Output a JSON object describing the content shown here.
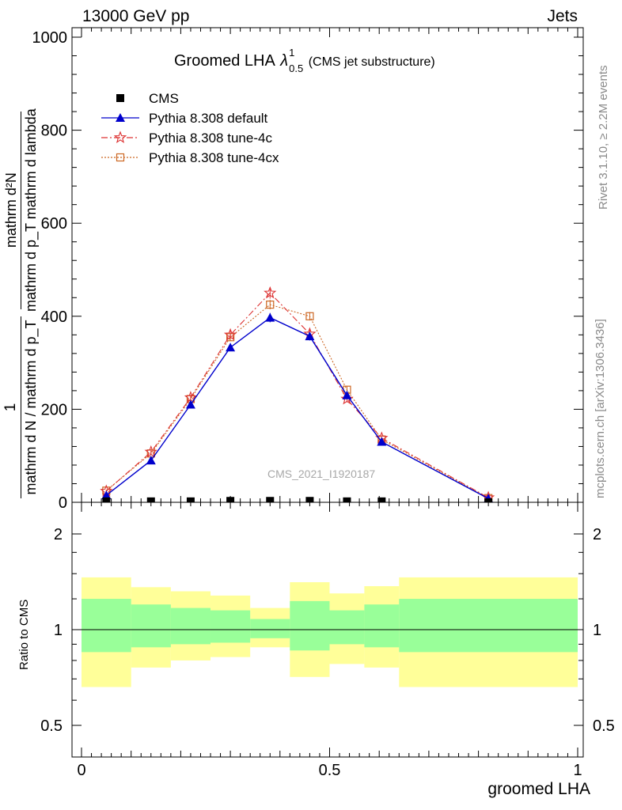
{
  "header": {
    "left": "13000 GeV pp",
    "right": "Jets"
  },
  "side_labels": {
    "rivet": "Rivet 3.1.10, ≥ 2.2M events",
    "mcplots": "mcplots.cern.ch [arXiv:1306.3436]"
  },
  "plot_title": {
    "main": "Groomed LHA",
    "lambda": "λ",
    "sup": "1",
    "sub": "0.5",
    "note": "(CMS jet substructure)"
  },
  "watermark": "CMS_2021_I1920187",
  "ratio_ylabel": "Ratio to CMS",
  "colors": {
    "cms": "#000000",
    "default": "#0000cc",
    "tune4c": "#dd3333",
    "tune4cx": "#cc6622",
    "band_outer": "#ffff99",
    "band_inner": "#99ff99"
  },
  "chart_data": [
    {
      "type": "line",
      "xlabel": "groomed LHA",
      "ylabel": {
        "frac_num": "1",
        "frac_den": "mathrm d N / mathrm d p_T",
        "main_num": "mathrm d²N",
        "main_den": "mathrm d p_T mathrm d lambda"
      },
      "xlim": [
        0,
        1
      ],
      "ylim": [
        0,
        1000
      ],
      "yticks": [
        "0",
        "200",
        "400",
        "600",
        "800",
        "1000"
      ],
      "legend_position": "top-left",
      "bins": [
        [
          0.0,
          0.1
        ],
        [
          0.1,
          0.18
        ],
        [
          0.18,
          0.26
        ],
        [
          0.26,
          0.34
        ],
        [
          0.34,
          0.42
        ],
        [
          0.42,
          0.5
        ],
        [
          0.5,
          0.57
        ],
        [
          0.57,
          0.64
        ],
        [
          0.64,
          1.0
        ]
      ],
      "series": [
        {
          "name": "CMS",
          "key": "cms",
          "marker": "square",
          "dash": "none",
          "x": [
            0.05,
            0.14,
            0.22,
            0.3,
            0.38,
            0.46,
            0.535,
            0.605,
            0.82
          ],
          "y": [
            2,
            2,
            2,
            3,
            3,
            3,
            2,
            2,
            0
          ],
          "err": [
            0,
            0,
            0,
            0,
            0,
            0,
            0,
            0,
            0
          ]
        },
        {
          "name": "Pythia 8.308 default",
          "key": "default",
          "marker": "triangle",
          "dash": "solid",
          "x": [
            0.05,
            0.14,
            0.22,
            0.3,
            0.38,
            0.46,
            0.535,
            0.605,
            0.82
          ],
          "y": [
            15,
            90,
            210,
            333,
            397,
            357,
            230,
            130,
            8
          ],
          "err": [
            2,
            4,
            6,
            8,
            10,
            9,
            7,
            5,
            2
          ]
        },
        {
          "name": "Pythia 8.308 tune-4c",
          "key": "tune4c",
          "marker": "star",
          "dash": "dashdot",
          "x": [
            0.05,
            0.14,
            0.22,
            0.3,
            0.38,
            0.46,
            0.535,
            0.605,
            0.82
          ],
          "y": [
            24,
            108,
            225,
            360,
            450,
            362,
            222,
            138,
            10
          ],
          "err": [
            2,
            4,
            6,
            8,
            12,
            10,
            7,
            5,
            2
          ]
        },
        {
          "name": "Pythia 8.308 tune-4cx",
          "key": "tune4cx",
          "marker": "opensquare",
          "dash": "dot",
          "x": [
            0.05,
            0.14,
            0.22,
            0.3,
            0.38,
            0.46,
            0.535,
            0.605,
            0.82
          ],
          "y": [
            25,
            105,
            222,
            355,
            425,
            400,
            242,
            135,
            9
          ],
          "err": [
            2,
            4,
            6,
            8,
            10,
            9,
            7,
            5,
            2
          ]
        }
      ]
    },
    {
      "type": "area",
      "ylabel": "Ratio to CMS",
      "xlabel": "groomed LHA",
      "xlim": [
        0,
        1
      ],
      "ylim": [
        0.45,
        2.3
      ],
      "yticks": [
        "0.5",
        "1",
        "2"
      ],
      "xticks": [
        "0",
        "0.5",
        "1"
      ],
      "reference_line": 1,
      "bands": [
        {
          "x0": 0.0,
          "x1": 0.1,
          "outer": [
            0.66,
            1.46
          ],
          "inner": [
            0.85,
            1.25
          ]
        },
        {
          "x0": 0.1,
          "x1": 0.18,
          "outer": [
            0.76,
            1.36
          ],
          "inner": [
            0.88,
            1.2
          ]
        },
        {
          "x0": 0.18,
          "x1": 0.26,
          "outer": [
            0.8,
            1.32
          ],
          "inner": [
            0.9,
            1.17
          ]
        },
        {
          "x0": 0.26,
          "x1": 0.34,
          "outer": [
            0.82,
            1.28
          ],
          "inner": [
            0.91,
            1.15
          ]
        },
        {
          "x0": 0.34,
          "x1": 0.42,
          "outer": [
            0.88,
            1.17
          ],
          "inner": [
            0.94,
            1.08
          ]
        },
        {
          "x0": 0.42,
          "x1": 0.5,
          "outer": [
            0.71,
            1.41
          ],
          "inner": [
            0.86,
            1.23
          ]
        },
        {
          "x0": 0.5,
          "x1": 0.57,
          "outer": [
            0.78,
            1.3
          ],
          "inner": [
            0.9,
            1.15
          ]
        },
        {
          "x0": 0.57,
          "x1": 0.64,
          "outer": [
            0.76,
            1.37
          ],
          "inner": [
            0.88,
            1.2
          ]
        },
        {
          "x0": 0.64,
          "x1": 1.0,
          "outer": [
            0.66,
            1.46
          ],
          "inner": [
            0.85,
            1.25
          ]
        }
      ]
    }
  ]
}
